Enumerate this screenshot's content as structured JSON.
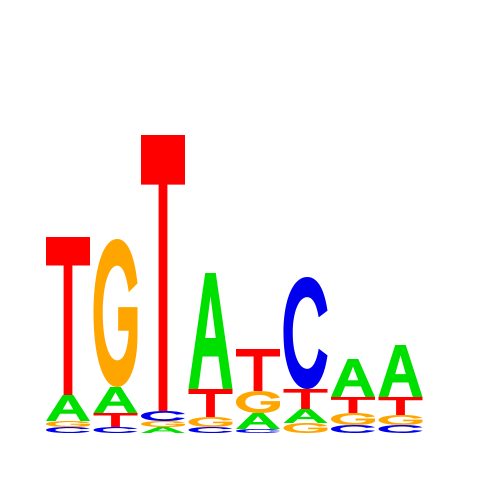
{
  "chart_data": {
    "type": "sequence_logo",
    "alphabet": [
      "A",
      "C",
      "G",
      "T"
    ],
    "colors": {
      "A": "#00e000",
      "C": "#0000ee",
      "G": "#ffa500",
      "T": "#ff0000"
    },
    "ylim": [
      0,
      2
    ],
    "positions": [
      {
        "A": 0.13,
        "C": 0.03,
        "G": 0.03,
        "T": 0.79
      },
      {
        "A": 0.13,
        "C": 0.03,
        "G": 0.74,
        "T": 0.07
      },
      {
        "A": 0.03,
        "C": 0.05,
        "G": 0.03,
        "T": 1.38
      },
      {
        "A": 0.58,
        "C": 0.03,
        "G": 0.05,
        "T": 0.14
      },
      {
        "A": 0.08,
        "C": 0.02,
        "G": 0.11,
        "T": 0.21
      },
      {
        "A": 0.07,
        "C": 0.56,
        "G": 0.05,
        "T": 0.1
      },
      {
        "A": 0.19,
        "C": 0.04,
        "G": 0.06,
        "T": 0.08
      },
      {
        "A": 0.26,
        "C": 0.04,
        "G": 0.05,
        "T": 0.09
      }
    ]
  }
}
